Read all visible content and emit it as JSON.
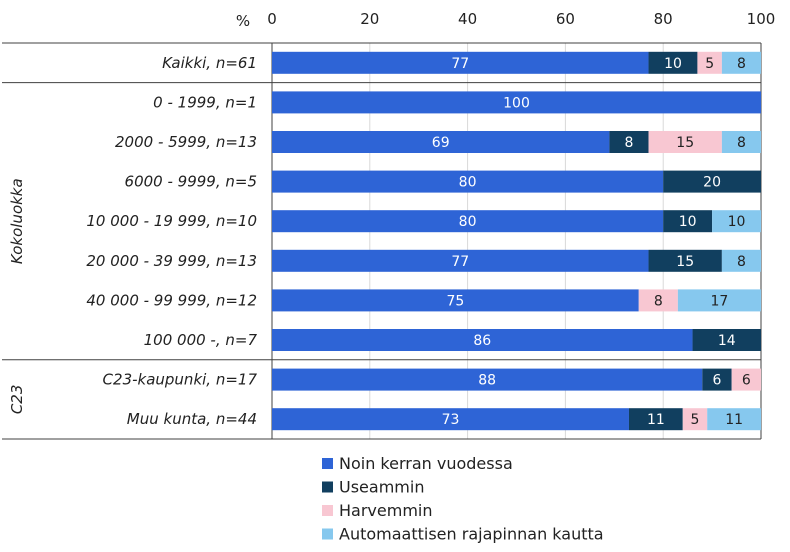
{
  "chart_data": {
    "type": "bar",
    "orientation": "horizontal",
    "stacked": true,
    "axis_unit_label": "%",
    "xlim": [
      0,
      100
    ],
    "xticks": [
      "0",
      "20",
      "40",
      "60",
      "80",
      "100"
    ],
    "grid": true,
    "legend_position": "bottom",
    "groups": [
      {
        "label": "",
        "categories": [
          "Kaikki, n=61"
        ]
      },
      {
        "label": "Kokoluokka",
        "categories": [
          "0 - 1999, n=1",
          "2000 - 5999, n=13",
          "6000 - 9999, n=5",
          "10 000 - 19 999, n=10",
          "20 000 - 39 999, n=13",
          "40 000 - 99 999, n=12",
          "100 000 -, n=7"
        ]
      },
      {
        "label": "C23",
        "categories": [
          "C23-kaupunki, n=17",
          "Muu kunta, n=44"
        ]
      }
    ],
    "categories": [
      "Kaikki, n=61",
      "0 - 1999, n=1",
      "2000 - 5999, n=13",
      "6000 - 9999, n=5",
      "10 000 - 19 999, n=10",
      "20 000 - 39 999, n=13",
      "40 000 - 99 999, n=12",
      "100 000 -, n=7",
      "C23-kaupunki, n=17",
      "Muu kunta, n=44"
    ],
    "series": [
      {
        "name": "Noin kerran vuodessa",
        "color": "#2e64d6",
        "label_color": "#ffffff",
        "values": [
          77,
          100,
          69,
          80,
          80,
          77,
          75,
          86,
          88,
          73
        ]
      },
      {
        "name": "Useammin",
        "color": "#113f5f",
        "label_color": "#ffffff",
        "values": [
          10,
          0,
          8,
          20,
          10,
          15,
          0,
          14,
          6,
          11
        ]
      },
      {
        "name": "Harvemmin",
        "color": "#f8c7d2",
        "label_color": "#222222",
        "values": [
          5,
          0,
          15,
          0,
          0,
          0,
          8,
          0,
          6,
          5
        ]
      },
      {
        "name": "Automaattisen rajapinnan kautta",
        "color": "#86c8ee",
        "label_color": "#222222",
        "values": [
          8,
          0,
          8,
          0,
          10,
          8,
          17,
          0,
          0,
          11
        ]
      }
    ]
  }
}
